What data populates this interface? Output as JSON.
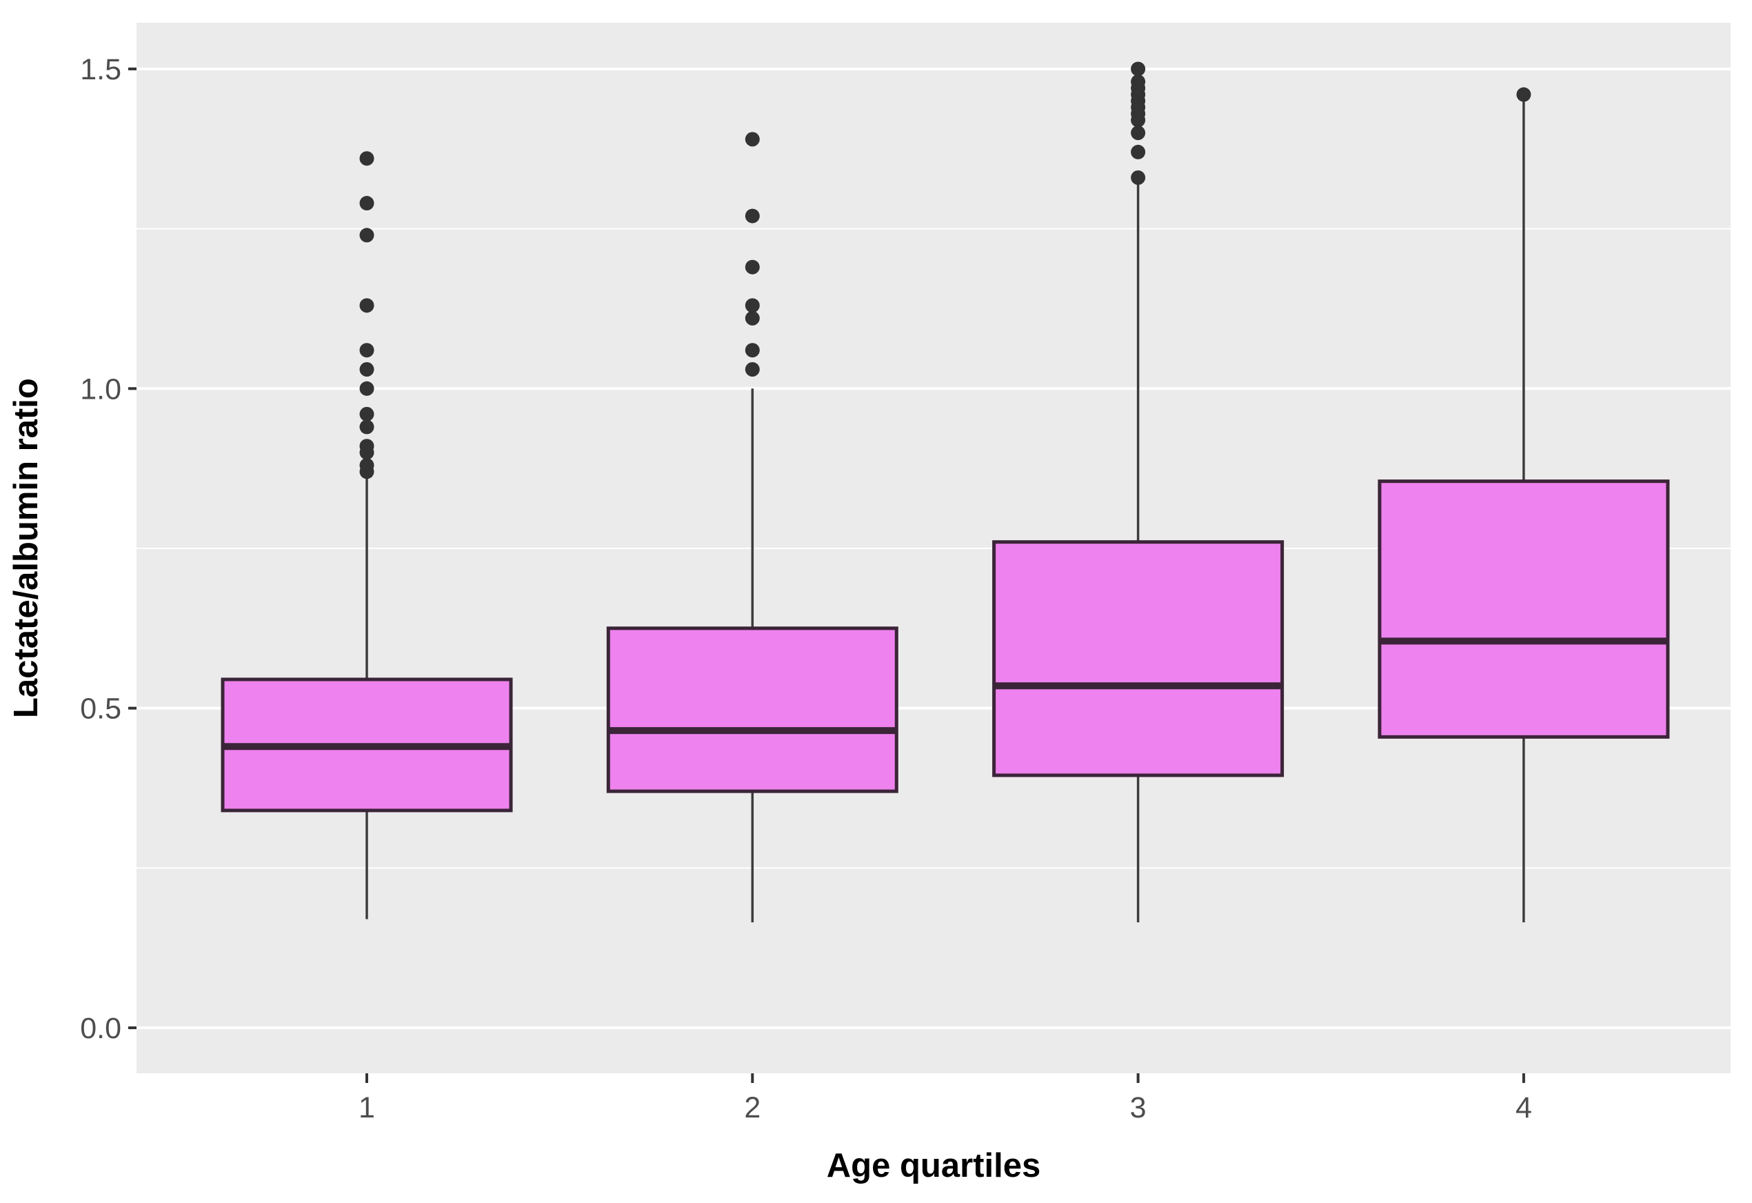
{
  "figure": {
    "xlabel": "Age quartiles",
    "ylabel": "Lactate/albumin ratio"
  },
  "colors": {
    "outer_bg": "#ffffff",
    "panel_bg": "#ebebeb",
    "grid": "#ffffff",
    "box_fill": "#ee82ee",
    "box_border": "#3b2438",
    "median_line": "#3b2438",
    "whisker": "#3c3c3c",
    "outlier": "#333333",
    "tick_mark": "#333333",
    "tick_label": "#4d4d4d",
    "axis_title": "#000000"
  },
  "chart_data": {
    "type": "boxplot",
    "title": "",
    "xlabel": "Age quartiles",
    "ylabel": "Lactate/albumin ratio",
    "categories": [
      "1",
      "2",
      "3",
      "4"
    ],
    "y_ticks": [
      0.0,
      0.5,
      1.0,
      1.5
    ],
    "y_tick_labels": [
      "0.0",
      "0.5",
      "1.0",
      "1.5"
    ],
    "y_minor_ticks": [
      0.25,
      0.75,
      1.25
    ],
    "ylim": [
      -0.07,
      1.57
    ],
    "grid": true,
    "legend": "none",
    "series": [
      {
        "category": "1",
        "whisker_low": 0.17,
        "q1": 0.34,
        "median": 0.44,
        "q3": 0.545,
        "whisker_high": 0.865,
        "outliers": [
          0.87,
          0.88,
          0.9,
          0.91,
          0.94,
          0.96,
          1.0,
          1.03,
          1.06,
          1.13,
          1.24,
          1.29,
          1.36
        ]
      },
      {
        "category": "2",
        "whisker_low": 0.165,
        "q1": 0.37,
        "median": 0.465,
        "q3": 0.625,
        "whisker_high": 1.0,
        "outliers": [
          1.03,
          1.06,
          1.11,
          1.13,
          1.19,
          1.27,
          1.39
        ]
      },
      {
        "category": "3",
        "whisker_low": 0.165,
        "q1": 0.395,
        "median": 0.535,
        "q3": 0.76,
        "whisker_high": 1.32,
        "outliers": [
          1.33,
          1.37,
          1.4,
          1.42,
          1.43,
          1.44,
          1.45,
          1.46,
          1.47,
          1.48,
          1.5
        ]
      },
      {
        "category": "4",
        "whisker_low": 0.165,
        "q1": 0.455,
        "median": 0.605,
        "q3": 0.855,
        "whisker_high": 1.455,
        "outliers": [
          1.46
        ]
      }
    ]
  }
}
